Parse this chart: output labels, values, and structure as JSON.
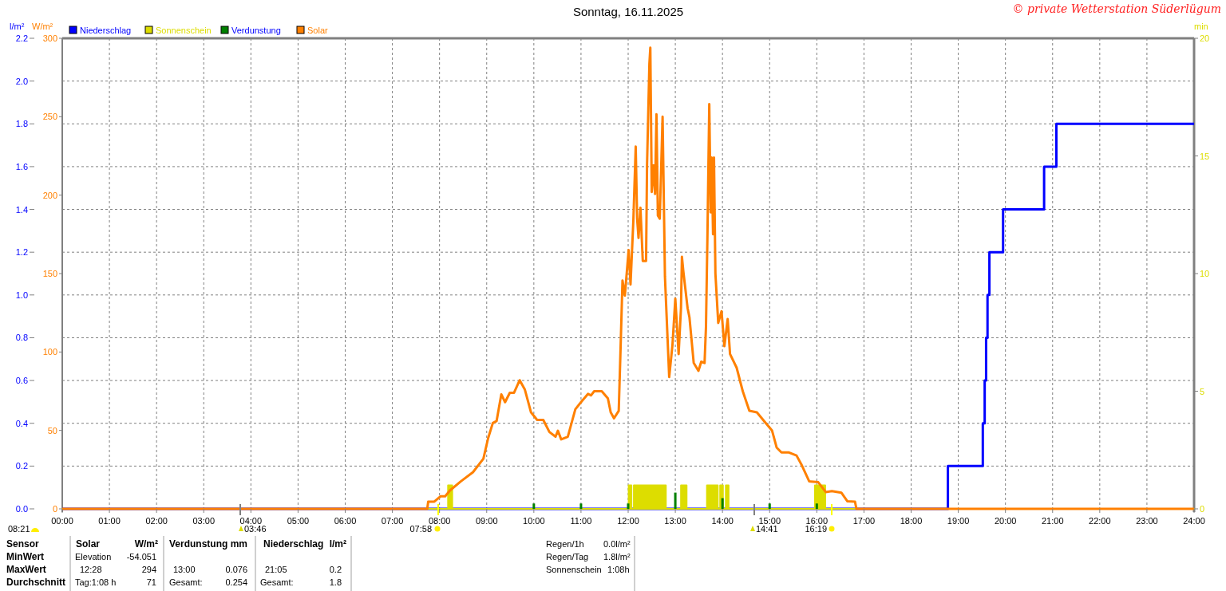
{
  "chart_data": {
    "type": "line",
    "title": "Sonntag, 16.11.2025",
    "ylabel": "l/m²",
    "y2label": "W/m²",
    "y3label": "min",
    "xlim": [
      0,
      24
    ],
    "xticks": [
      {
        "value": 0,
        "label": "00:00"
      },
      {
        "value": 1,
        "label": "01:00"
      },
      {
        "value": 2,
        "label": "02:00"
      },
      {
        "value": 3,
        "label": "03:00"
      },
      {
        "value": 4,
        "label": "04:00"
      },
      {
        "value": 5,
        "label": "05:00"
      },
      {
        "value": 6,
        "label": "06:00"
      },
      {
        "value": 7,
        "label": "07:00"
      },
      {
        "value": 8,
        "label": "08:00"
      },
      {
        "value": 9,
        "label": "09:00"
      },
      {
        "value": 10,
        "label": "10:00"
      },
      {
        "value": 11,
        "label": "11:00"
      },
      {
        "value": 12,
        "label": "12:00"
      },
      {
        "value": 13,
        "label": "13:00"
      },
      {
        "value": 14,
        "label": "14:00"
      },
      {
        "value": 15,
        "label": "15:00"
      },
      {
        "value": 16,
        "label": "16:00"
      },
      {
        "value": 17,
        "label": "17:00"
      },
      {
        "value": 18,
        "label": "18:00"
      },
      {
        "value": 19,
        "label": "19:00"
      },
      {
        "value": 20,
        "label": "20:00"
      },
      {
        "value": 21,
        "label": "21:00"
      },
      {
        "value": 22,
        "label": "22:00"
      },
      {
        "value": 23,
        "label": "23:00"
      },
      {
        "value": 24,
        "label": "24:00"
      }
    ],
    "ylim": [
      0,
      2.2
    ],
    "yticks": [
      {
        "value": 0,
        "label": "0.0"
      },
      0.2,
      0.4,
      0.6,
      0.8,
      {
        "value": 1,
        "label": "1.0"
      },
      1.2,
      1.4,
      1.6,
      1.8,
      {
        "value": 2,
        "label": "2.0"
      },
      2.2
    ],
    "y2lim": [
      0,
      300
    ],
    "y2ticks": [
      0,
      50,
      100,
      150,
      200,
      250,
      300
    ],
    "y3lim": [
      0,
      20
    ],
    "y3ticks": [
      0,
      5,
      10,
      15,
      20
    ],
    "grid": true,
    "legend": "top left",
    "series": [
      {
        "name": "Niederschlag",
        "type": "step",
        "axis": "y",
        "color": "#0000ff",
        "x": [
          0,
          18.78,
          19.52,
          19.56,
          19.59,
          19.62,
          19.66,
          19.95,
          20.82,
          21.08,
          24
        ],
        "values": [
          0,
          0.2,
          0.4,
          0.6,
          0.8,
          1.0,
          1.2,
          1.4,
          1.6,
          1.8,
          1.8
        ]
      },
      {
        "name": "Sonnenschein",
        "type": "area",
        "axis": "y3",
        "color": "#dddd00",
        "x": [
          0,
          8.18,
          8.18,
          8.27,
          8.27,
          12.01,
          12.01,
          12.07,
          12.07,
          12.12,
          12.12,
          12.8,
          12.8,
          13.12,
          13.12,
          13.24,
          13.24,
          13.67,
          13.67,
          13.9,
          13.9,
          13.95,
          13.95,
          14.01,
          14.01,
          14.07,
          14.07,
          14.13,
          14.13,
          15.96,
          15.96,
          16.18,
          16.18,
          24
        ],
        "values": [
          0,
          0,
          1,
          1,
          0,
          0,
          1,
          1,
          0,
          0,
          1,
          1,
          0,
          0,
          1,
          1,
          0,
          0,
          1,
          1,
          0,
          0,
          1,
          1,
          0,
          0,
          1,
          1,
          0,
          0,
          1,
          1,
          0,
          0
        ]
      },
      {
        "name": "Verdunstung",
        "type": "bar",
        "axis": "y",
        "color": "#008000",
        "x": [
          10,
          11,
          12,
          13,
          14,
          15,
          16
        ],
        "values": [
          0.025,
          0.025,
          0.025,
          0.076,
          0.05,
          0.025,
          0.025
        ]
      },
      {
        "name": "Solar",
        "axis": "y2",
        "color": "#ff8000",
        "x": [
          0,
          7.74,
          7.76,
          7.89,
          8.02,
          8.12,
          8.22,
          8.45,
          8.71,
          8.93,
          9.03,
          9.13,
          9.21,
          9.31,
          9.39,
          9.49,
          9.58,
          9.7,
          9.81,
          9.94,
          10.07,
          10.2,
          10.33,
          10.46,
          10.51,
          10.58,
          10.72,
          10.88,
          11.01,
          11.15,
          11.21,
          11.28,
          11.44,
          11.57,
          11.63,
          11.7,
          11.8,
          11.83,
          11.88,
          11.93,
          12.01,
          12.05,
          12.11,
          12.16,
          12.19,
          12.22,
          12.26,
          12.31,
          12.38,
          12.4,
          12.45,
          12.47,
          12.5,
          12.54,
          12.57,
          12.6,
          12.63,
          12.67,
          12.73,
          12.78,
          12.87,
          12.94,
          13.0,
          13.07,
          13.12,
          13.14,
          13.17,
          13.26,
          13.3,
          13.39,
          13.49,
          13.55,
          13.62,
          13.65,
          13.68,
          13.72,
          13.75,
          13.77,
          13.8,
          13.82,
          13.85,
          13.91,
          13.98,
          14.04,
          14.11,
          14.16,
          14.3,
          14.43,
          14.57,
          14.73,
          14.89,
          15.05,
          15.15,
          15.25,
          15.4,
          15.57,
          15.67,
          15.84,
          16.03,
          16.19,
          16.32,
          16.52,
          16.65,
          16.81,
          16.84,
          24
        ],
        "values": [
          0,
          0,
          4.6,
          4.6,
          8,
          8,
          11.7,
          17.5,
          23.4,
          32,
          45,
          54.7,
          56,
          73,
          68,
          74,
          74,
          82,
          76,
          61.5,
          56.7,
          56.7,
          49,
          46,
          49.8,
          44.3,
          46,
          63.5,
          68.4,
          73.3,
          72.3,
          75,
          75,
          70.4,
          61.5,
          57.7,
          62.5,
          93,
          145.6,
          136,
          165,
          143,
          183.7,
          231,
          185,
          172.7,
          192,
          158,
          158,
          219,
          283.7,
          294,
          202,
          219,
          200.7,
          251.6,
          187,
          185,
          250,
          148,
          84,
          104.7,
          134,
          98.7,
          128,
          160.7,
          151.5,
          128,
          122,
          93,
          88,
          93.8,
          93,
          116,
          172,
          258,
          189,
          224,
          175,
          224,
          150,
          118.5,
          126,
          103.7,
          121,
          98.7,
          90,
          75,
          62.5,
          61.5,
          55.7,
          50,
          39,
          36,
          36,
          34,
          28.5,
          17.5,
          17,
          10.7,
          11.3,
          10.3,
          4.8,
          4.6,
          0,
          0
        ]
      }
    ],
    "annotations": [
      "© private Wetterstation Süderlügum",
      "08:21",
      "03:46",
      "07:58",
      "14:41",
      "16:19",
      "Sensor",
      "Solar",
      "W/m²",
      "Verdunstung",
      "mm",
      "Niederschlag",
      "l/m²",
      "MinWert",
      "Elevation",
      "-54.051",
      "MaxWert",
      "12:28",
      "294",
      "13:00",
      "0.076",
      "21:05",
      "0.2",
      "Durchschnitt",
      "Tag:1:08 h",
      "71",
      "Gesamt:",
      "0.254",
      "Gesamt:",
      "1.8",
      "Regen/1h",
      "0.0l/m²",
      "Regen/Tag",
      "1.8l/m²",
      "Sonnenschein",
      "1:08h"
    ]
  }
}
